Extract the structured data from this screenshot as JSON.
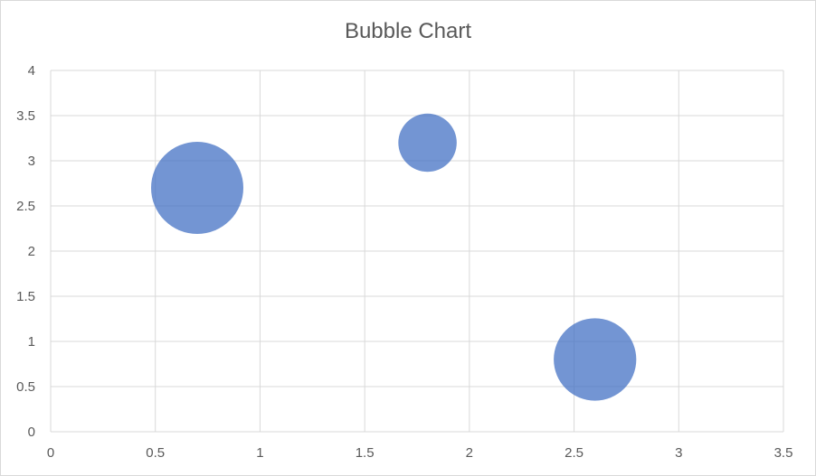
{
  "chart_data": {
    "type": "bubble",
    "title": "Bubble Chart",
    "xlabel": "",
    "ylabel": "",
    "xlim": [
      0,
      3.5
    ],
    "ylim": [
      0,
      4
    ],
    "x_ticks": [
      "0",
      "0.5",
      "1",
      "1.5",
      "2",
      "2.5",
      "3",
      "3.5"
    ],
    "y_ticks": [
      "0",
      "0.5",
      "1",
      "1.5",
      "2",
      "2.5",
      "3",
      "3.5",
      "4"
    ],
    "grid": true,
    "legend": "none",
    "series": [
      {
        "color": "#4472C4",
        "points": [
          {
            "x": 0.7,
            "y": 2.7,
            "size": 10
          },
          {
            "x": 1.8,
            "y": 3.2,
            "size": 4
          },
          {
            "x": 2.6,
            "y": 0.8,
            "size": 8
          }
        ]
      }
    ]
  }
}
